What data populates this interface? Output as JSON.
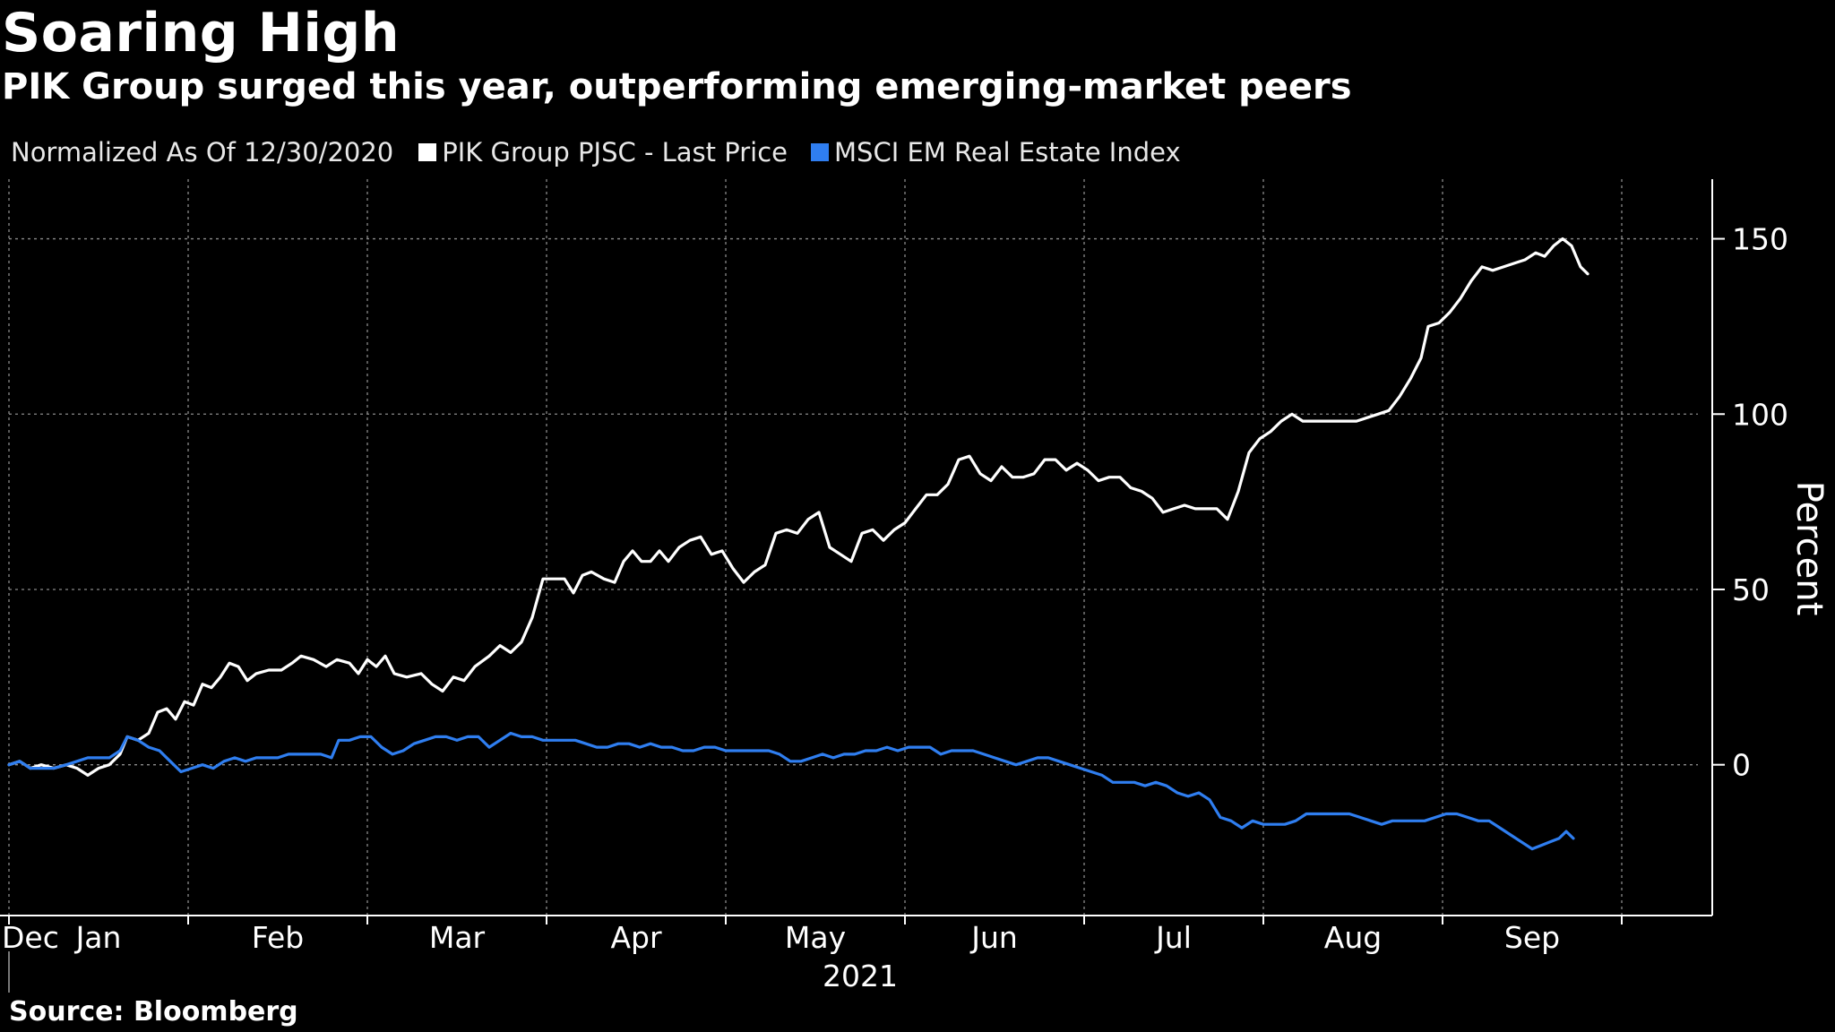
{
  "title": "Soaring High",
  "subtitle": "PIK Group surged this year, outperforming emerging-market peers",
  "legend": {
    "normalized": "Normalized As Of 12/30/2020",
    "series1": "PIK Group PJSC - Last Price",
    "series2": "MSCI EM Real Estate Index"
  },
  "source": "Source: Bloomberg",
  "colors": {
    "series1": "#ffffff",
    "series2": "#2f7ef0",
    "grid": "#8a8a8a"
  },
  "chart_data": {
    "type": "line",
    "title": "Soaring High",
    "subtitle": "PIK Group surged this year, outperforming emerging-market peers",
    "xlabel": "2021",
    "ylabel": "Percent",
    "ylim": [
      -43,
      167
    ],
    "yticks": [
      0,
      50,
      100,
      150
    ],
    "xlim": [
      0,
      9.5
    ],
    "x_ticks": [
      {
        "label": "Dec",
        "x": 0.0
      },
      {
        "label": "Jan",
        "x": 0.5
      },
      {
        "label": "Feb",
        "x": 1.5
      },
      {
        "label": "Mar",
        "x": 2.5
      },
      {
        "label": "Apr",
        "x": 3.5
      },
      {
        "label": "May",
        "x": 4.5
      },
      {
        "label": "Jun",
        "x": 5.5
      },
      {
        "label": "Jul",
        "x": 6.5
      },
      {
        "label": "Aug",
        "x": 7.5
      },
      {
        "label": "Sep",
        "x": 8.5
      }
    ],
    "x_gridlines": [
      0.0,
      1.0,
      2.0,
      3.0,
      4.0,
      5.0,
      6.0,
      7.0,
      8.0,
      9.0
    ],
    "year_label": "2021",
    "series": [
      {
        "name": "PIK Group PJSC - Last Price",
        "color": "#ffffff",
        "points": [
          [
            0.0,
            0
          ],
          [
            0.06,
            1
          ],
          [
            0.12,
            -1
          ],
          [
            0.18,
            0
          ],
          [
            0.25,
            -1
          ],
          [
            0.32,
            0
          ],
          [
            0.38,
            -1
          ],
          [
            0.44,
            -3
          ],
          [
            0.5,
            -1
          ],
          [
            0.56,
            0
          ],
          [
            0.62,
            3
          ],
          [
            0.66,
            8
          ],
          [
            0.72,
            7
          ],
          [
            0.78,
            9
          ],
          [
            0.83,
            15
          ],
          [
            0.88,
            16
          ],
          [
            0.93,
            13
          ],
          [
            0.98,
            18
          ],
          [
            1.03,
            17
          ],
          [
            1.08,
            23
          ],
          [
            1.13,
            22
          ],
          [
            1.18,
            25
          ],
          [
            1.23,
            29
          ],
          [
            1.28,
            28
          ],
          [
            1.33,
            24
          ],
          [
            1.38,
            26
          ],
          [
            1.45,
            27
          ],
          [
            1.52,
            27
          ],
          [
            1.58,
            29
          ],
          [
            1.63,
            31
          ],
          [
            1.7,
            30
          ],
          [
            1.77,
            28
          ],
          [
            1.83,
            30
          ],
          [
            1.9,
            29
          ],
          [
            1.95,
            26
          ],
          [
            2.0,
            30
          ],
          [
            2.05,
            28
          ],
          [
            2.1,
            31
          ],
          [
            2.15,
            26
          ],
          [
            2.22,
            25
          ],
          [
            2.3,
            26
          ],
          [
            2.36,
            23
          ],
          [
            2.42,
            21
          ],
          [
            2.48,
            25
          ],
          [
            2.54,
            24
          ],
          [
            2.6,
            28
          ],
          [
            2.68,
            31
          ],
          [
            2.74,
            34
          ],
          [
            2.8,
            32
          ],
          [
            2.86,
            35
          ],
          [
            2.92,
            42
          ],
          [
            2.98,
            53
          ],
          [
            3.04,
            53
          ],
          [
            3.1,
            53
          ],
          [
            3.15,
            49
          ],
          [
            3.2,
            54
          ],
          [
            3.25,
            55
          ],
          [
            3.32,
            53
          ],
          [
            3.38,
            52
          ],
          [
            3.43,
            58
          ],
          [
            3.48,
            61
          ],
          [
            3.53,
            58
          ],
          [
            3.58,
            58
          ],
          [
            3.63,
            61
          ],
          [
            3.68,
            58
          ],
          [
            3.74,
            62
          ],
          [
            3.8,
            64
          ],
          [
            3.86,
            65
          ],
          [
            3.92,
            60
          ],
          [
            3.98,
            61
          ],
          [
            4.04,
            56
          ],
          [
            4.1,
            52
          ],
          [
            4.16,
            55
          ],
          [
            4.22,
            57
          ],
          [
            4.28,
            66
          ],
          [
            4.34,
            67
          ],
          [
            4.4,
            66
          ],
          [
            4.46,
            70
          ],
          [
            4.52,
            72
          ],
          [
            4.58,
            62
          ],
          [
            4.64,
            60
          ],
          [
            4.7,
            58
          ],
          [
            4.76,
            66
          ],
          [
            4.82,
            67
          ],
          [
            4.88,
            64
          ],
          [
            4.94,
            67
          ],
          [
            5.0,
            69
          ],
          [
            5.06,
            73
          ],
          [
            5.12,
            77
          ],
          [
            5.18,
            77
          ],
          [
            5.24,
            80
          ],
          [
            5.3,
            87
          ],
          [
            5.36,
            88
          ],
          [
            5.42,
            83
          ],
          [
            5.48,
            81
          ],
          [
            5.54,
            85
          ],
          [
            5.6,
            82
          ],
          [
            5.66,
            82
          ],
          [
            5.72,
            83
          ],
          [
            5.78,
            87
          ],
          [
            5.84,
            87
          ],
          [
            5.9,
            84
          ],
          [
            5.96,
            86
          ],
          [
            6.02,
            84
          ],
          [
            6.08,
            81
          ],
          [
            6.14,
            82
          ],
          [
            6.2,
            82
          ],
          [
            6.26,
            79
          ],
          [
            6.32,
            78
          ],
          [
            6.38,
            76
          ],
          [
            6.44,
            72
          ],
          [
            6.5,
            73
          ],
          [
            6.56,
            74
          ],
          [
            6.62,
            73
          ],
          [
            6.68,
            73
          ],
          [
            6.74,
            73
          ],
          [
            6.8,
            70
          ],
          [
            6.86,
            78
          ],
          [
            6.92,
            89
          ],
          [
            6.98,
            93
          ],
          [
            7.04,
            95
          ],
          [
            7.1,
            98
          ],
          [
            7.16,
            100
          ],
          [
            7.22,
            98
          ],
          [
            7.28,
            98
          ],
          [
            7.34,
            98
          ],
          [
            7.4,
            98
          ],
          [
            7.46,
            98
          ],
          [
            7.52,
            98
          ],
          [
            7.58,
            99
          ],
          [
            7.64,
            100
          ],
          [
            7.7,
            101
          ],
          [
            7.76,
            105
          ],
          [
            7.82,
            110
          ],
          [
            7.88,
            116
          ],
          [
            7.92,
            125
          ],
          [
            7.98,
            126
          ],
          [
            8.04,
            129
          ],
          [
            8.1,
            133
          ],
          [
            8.16,
            138
          ],
          [
            8.22,
            142
          ],
          [
            8.28,
            141
          ],
          [
            8.34,
            142
          ],
          [
            8.4,
            143
          ],
          [
            8.46,
            144
          ],
          [
            8.52,
            146
          ],
          [
            8.57,
            145
          ],
          [
            8.62,
            148
          ],
          [
            8.67,
            150
          ],
          [
            8.72,
            148
          ],
          [
            8.77,
            142
          ],
          [
            8.81,
            140
          ]
        ]
      },
      {
        "name": "MSCI EM Real Estate Index",
        "color": "#2f7ef0",
        "points": [
          [
            0.0,
            0
          ],
          [
            0.06,
            1
          ],
          [
            0.12,
            -1
          ],
          [
            0.18,
            -1
          ],
          [
            0.25,
            -1
          ],
          [
            0.32,
            0
          ],
          [
            0.38,
            1
          ],
          [
            0.44,
            2
          ],
          [
            0.5,
            2
          ],
          [
            0.56,
            2
          ],
          [
            0.62,
            4
          ],
          [
            0.66,
            8
          ],
          [
            0.72,
            7
          ],
          [
            0.78,
            5
          ],
          [
            0.84,
            4
          ],
          [
            0.9,
            1
          ],
          [
            0.96,
            -2
          ],
          [
            1.02,
            -1
          ],
          [
            1.08,
            0
          ],
          [
            1.14,
            -1
          ],
          [
            1.2,
            1
          ],
          [
            1.26,
            2
          ],
          [
            1.32,
            1
          ],
          [
            1.38,
            2
          ],
          [
            1.44,
            2
          ],
          [
            1.5,
            2
          ],
          [
            1.56,
            3
          ],
          [
            1.62,
            3
          ],
          [
            1.68,
            3
          ],
          [
            1.74,
            3
          ],
          [
            1.8,
            2
          ],
          [
            1.84,
            7
          ],
          [
            1.9,
            7
          ],
          [
            1.96,
            8
          ],
          [
            2.02,
            8
          ],
          [
            2.08,
            5
          ],
          [
            2.14,
            3
          ],
          [
            2.2,
            4
          ],
          [
            2.26,
            6
          ],
          [
            2.32,
            7
          ],
          [
            2.38,
            8
          ],
          [
            2.44,
            8
          ],
          [
            2.5,
            7
          ],
          [
            2.56,
            8
          ],
          [
            2.62,
            8
          ],
          [
            2.68,
            5
          ],
          [
            2.74,
            7
          ],
          [
            2.8,
            9
          ],
          [
            2.86,
            8
          ],
          [
            2.92,
            8
          ],
          [
            2.98,
            7
          ],
          [
            3.04,
            7
          ],
          [
            3.1,
            7
          ],
          [
            3.16,
            7
          ],
          [
            3.22,
            6
          ],
          [
            3.28,
            5
          ],
          [
            3.34,
            5
          ],
          [
            3.4,
            6
          ],
          [
            3.46,
            6
          ],
          [
            3.52,
            5
          ],
          [
            3.58,
            6
          ],
          [
            3.64,
            5
          ],
          [
            3.7,
            5
          ],
          [
            3.76,
            4
          ],
          [
            3.82,
            4
          ],
          [
            3.88,
            5
          ],
          [
            3.94,
            5
          ],
          [
            4.0,
            4
          ],
          [
            4.06,
            4
          ],
          [
            4.12,
            4
          ],
          [
            4.18,
            4
          ],
          [
            4.24,
            4
          ],
          [
            4.3,
            3
          ],
          [
            4.36,
            1
          ],
          [
            4.42,
            1
          ],
          [
            4.48,
            2
          ],
          [
            4.54,
            3
          ],
          [
            4.6,
            2
          ],
          [
            4.66,
            3
          ],
          [
            4.72,
            3
          ],
          [
            4.78,
            4
          ],
          [
            4.84,
            4
          ],
          [
            4.9,
            5
          ],
          [
            4.96,
            4
          ],
          [
            5.02,
            5
          ],
          [
            5.08,
            5
          ],
          [
            5.14,
            5
          ],
          [
            5.2,
            3
          ],
          [
            5.26,
            4
          ],
          [
            5.32,
            4
          ],
          [
            5.38,
            4
          ],
          [
            5.44,
            3
          ],
          [
            5.5,
            2
          ],
          [
            5.56,
            1
          ],
          [
            5.62,
            0
          ],
          [
            5.68,
            1
          ],
          [
            5.74,
            2
          ],
          [
            5.8,
            2
          ],
          [
            5.86,
            1
          ],
          [
            5.92,
            0
          ],
          [
            5.98,
            -1
          ],
          [
            6.04,
            -2
          ],
          [
            6.1,
            -3
          ],
          [
            6.16,
            -5
          ],
          [
            6.22,
            -5
          ],
          [
            6.28,
            -5
          ],
          [
            6.34,
            -6
          ],
          [
            6.4,
            -5
          ],
          [
            6.46,
            -6
          ],
          [
            6.52,
            -8
          ],
          [
            6.58,
            -9
          ],
          [
            6.64,
            -8
          ],
          [
            6.7,
            -10
          ],
          [
            6.76,
            -15
          ],
          [
            6.82,
            -16
          ],
          [
            6.88,
            -18
          ],
          [
            6.94,
            -16
          ],
          [
            7.0,
            -17
          ],
          [
            7.06,
            -17
          ],
          [
            7.12,
            -17
          ],
          [
            7.18,
            -16
          ],
          [
            7.24,
            -14
          ],
          [
            7.3,
            -14
          ],
          [
            7.36,
            -14
          ],
          [
            7.42,
            -14
          ],
          [
            7.48,
            -14
          ],
          [
            7.54,
            -15
          ],
          [
            7.6,
            -16
          ],
          [
            7.66,
            -17
          ],
          [
            7.72,
            -16
          ],
          [
            7.78,
            -16
          ],
          [
            7.84,
            -16
          ],
          [
            7.9,
            -16
          ],
          [
            7.96,
            -15
          ],
          [
            8.02,
            -14
          ],
          [
            8.08,
            -14
          ],
          [
            8.14,
            -15
          ],
          [
            8.2,
            -16
          ],
          [
            8.26,
            -16
          ],
          [
            8.32,
            -18
          ],
          [
            8.38,
            -20
          ],
          [
            8.44,
            -22
          ],
          [
            8.5,
            -24
          ],
          [
            8.55,
            -23
          ],
          [
            8.6,
            -22
          ],
          [
            8.65,
            -21
          ],
          [
            8.69,
            -19
          ],
          [
            8.73,
            -21
          ]
        ]
      }
    ]
  }
}
